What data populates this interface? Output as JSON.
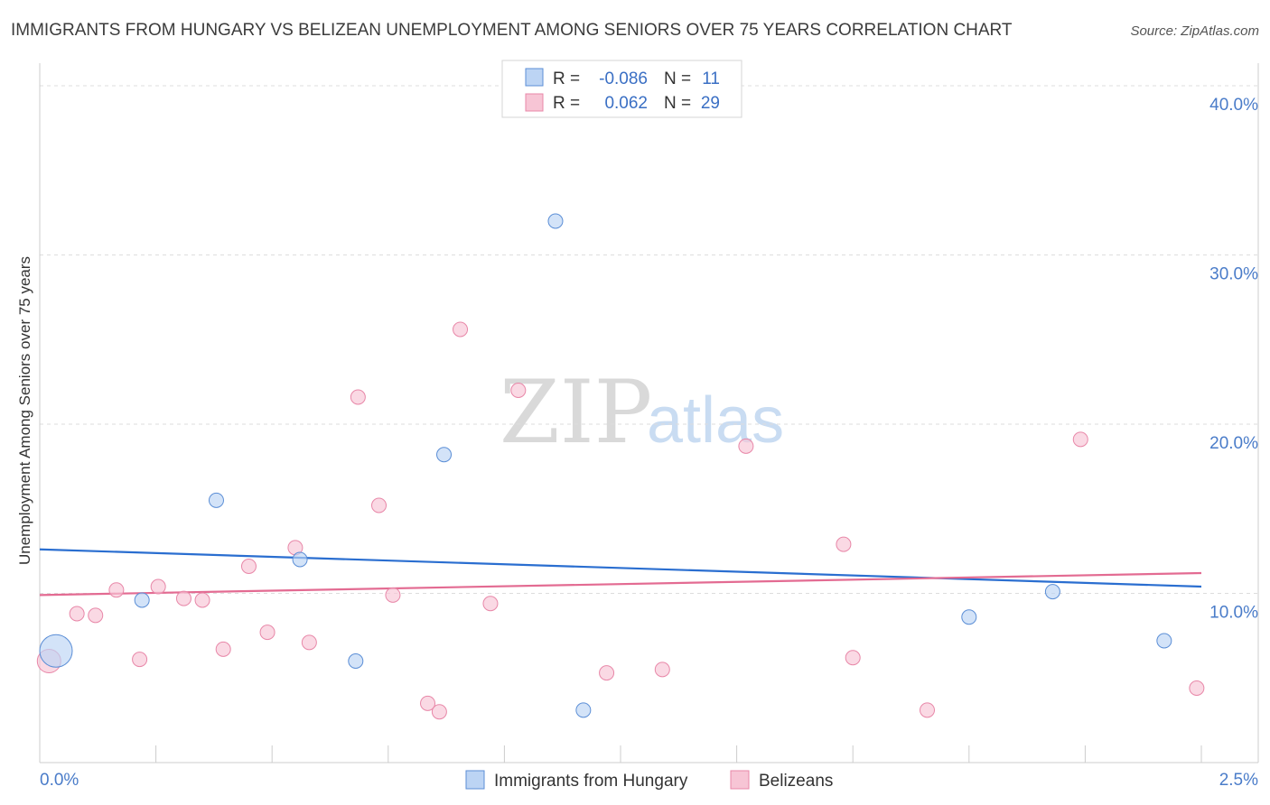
{
  "chart_data": {
    "type": "scatter",
    "title": "IMMIGRANTS FROM HUNGARY VS BELIZEAN UNEMPLOYMENT AMONG SENIORS OVER 75 YEARS CORRELATION CHART",
    "source": "Source: ZipAtlas.com",
    "xlabel": "",
    "ylabel": "Unemployment Among Seniors over 75 years",
    "xlim": [
      0,
      2.5
    ],
    "ylim": [
      0,
      40
    ],
    "x_tick_labels": [
      {
        "value": 0,
        "label": "0.0%"
      },
      {
        "value": 2.5,
        "label": "2.5%"
      }
    ],
    "y_ticks": [
      {
        "value": 10,
        "label": "10.0%"
      },
      {
        "value": 20,
        "label": "20.0%"
      },
      {
        "value": 30,
        "label": "30.0%"
      },
      {
        "value": 40,
        "label": "40.0%"
      }
    ],
    "watermark": {
      "zip": "ZIP",
      "atlas": "atlas"
    },
    "legend": {
      "r_label": "R =",
      "n_label": "N =",
      "entries": [
        {
          "name": "Immigrants from Hungary",
          "r": "-0.086",
          "n": "11"
        },
        {
          "name": "Belizeans",
          "r": "0.062",
          "n": "29"
        }
      ]
    },
    "series": [
      {
        "name": "Immigrants from Hungary",
        "color": "#5b8ed6",
        "fill": "#bcd4f4",
        "trend": {
          "start": [
            0,
            12.6
          ],
          "end": [
            2.5,
            10.4
          ],
          "color": "#2a6ed0"
        },
        "points": [
          {
            "x": 0.035,
            "y": 6.6,
            "size": "large"
          },
          {
            "x": 0.22,
            "y": 9.6
          },
          {
            "x": 0.38,
            "y": 15.5
          },
          {
            "x": 0.56,
            "y": 12.0
          },
          {
            "x": 0.68,
            "y": 6.0
          },
          {
            "x": 0.87,
            "y": 18.2
          },
          {
            "x": 1.11,
            "y": 32.0
          },
          {
            "x": 1.17,
            "y": 3.1
          },
          {
            "x": 2.0,
            "y": 8.6
          },
          {
            "x": 2.18,
            "y": 10.1
          },
          {
            "x": 2.42,
            "y": 7.2
          }
        ]
      },
      {
        "name": "Belizeans",
        "color": "#e887a8",
        "fill": "#f7c5d5",
        "trend": {
          "start": [
            0,
            9.9
          ],
          "end": [
            2.5,
            11.2
          ],
          "color": "#e36b92"
        },
        "points": [
          {
            "x": 0.02,
            "y": 6.0,
            "size": "medium"
          },
          {
            "x": 0.08,
            "y": 8.8
          },
          {
            "x": 0.12,
            "y": 8.7
          },
          {
            "x": 0.165,
            "y": 10.2
          },
          {
            "x": 0.215,
            "y": 6.1
          },
          {
            "x": 0.255,
            "y": 10.4
          },
          {
            "x": 0.31,
            "y": 9.7
          },
          {
            "x": 0.35,
            "y": 9.6
          },
          {
            "x": 0.395,
            "y": 6.7
          },
          {
            "x": 0.45,
            "y": 11.6
          },
          {
            "x": 0.49,
            "y": 7.7
          },
          {
            "x": 0.55,
            "y": 12.7
          },
          {
            "x": 0.58,
            "y": 7.1
          },
          {
            "x": 0.685,
            "y": 21.6
          },
          {
            "x": 0.73,
            "y": 15.2
          },
          {
            "x": 0.76,
            "y": 9.9
          },
          {
            "x": 0.835,
            "y": 3.5
          },
          {
            "x": 0.86,
            "y": 3.0
          },
          {
            "x": 0.905,
            "y": 25.6
          },
          {
            "x": 0.97,
            "y": 9.4
          },
          {
            "x": 1.03,
            "y": 22.0
          },
          {
            "x": 1.22,
            "y": 5.3
          },
          {
            "x": 1.34,
            "y": 5.5
          },
          {
            "x": 1.52,
            "y": 18.7
          },
          {
            "x": 1.73,
            "y": 12.9
          },
          {
            "x": 1.75,
            "y": 6.2
          },
          {
            "x": 1.91,
            "y": 3.1
          },
          {
            "x": 2.24,
            "y": 19.1
          },
          {
            "x": 2.49,
            "y": 4.4
          }
        ]
      }
    ]
  }
}
